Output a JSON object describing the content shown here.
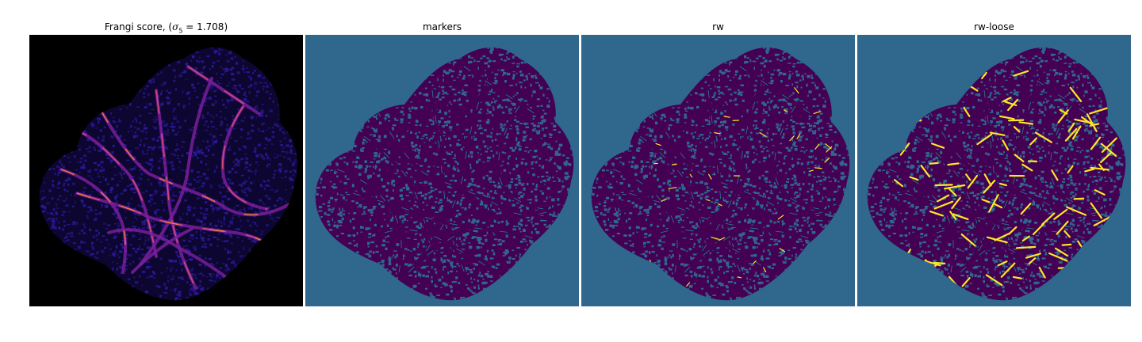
{
  "figure": {
    "panels": [
      {
        "title": "Frangi score, (",
        "sigma_symbol": "σ",
        "sigma_subscript": "5",
        "sigma_value": " = 1.708)",
        "colormap": "magma",
        "background": "#000000"
      },
      {
        "title": "markers",
        "colormap": "viridis",
        "background": "#30678d"
      },
      {
        "title": "rw",
        "colormap": "viridis",
        "background": "#30678d"
      },
      {
        "title": "rw-loose",
        "colormap": "viridis",
        "background": "#30678d"
      }
    ]
  },
  "colors": {
    "background_teal": "#30678d",
    "purple_dark": "#440154",
    "teal_line": "#21918c",
    "yellow": "#fde725",
    "frangi_blue": "#2a1896",
    "frangi_purple": "#7a1f9a",
    "frangi_orange": "#f57d3a",
    "frangi_pink": "#d14a78"
  }
}
